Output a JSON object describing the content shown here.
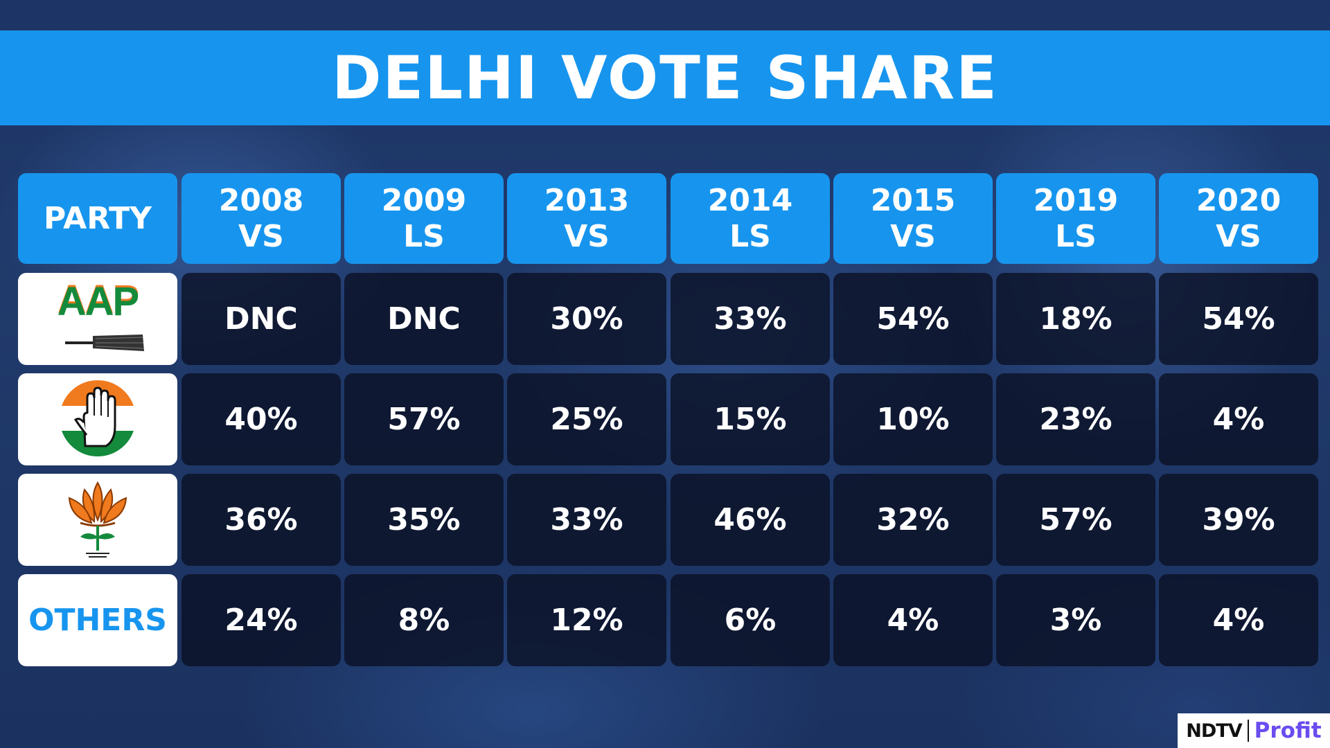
{
  "title": "DELHI VOTE SHARE",
  "chart_data": {
    "type": "table",
    "title": "DELHI VOTE SHARE",
    "header": {
      "party_label": "PARTY",
      "columns": [
        {
          "year": "2008",
          "type": "VS"
        },
        {
          "year": "2009",
          "type": "LS"
        },
        {
          "year": "2013",
          "type": "VS"
        },
        {
          "year": "2014",
          "type": "LS"
        },
        {
          "year": "2015",
          "type": "VS"
        },
        {
          "year": "2019",
          "type": "LS"
        },
        {
          "year": "2020",
          "type": "VS"
        }
      ]
    },
    "rows": [
      {
        "party_text": "AAP",
        "logo_icon": "aap-broom-logo-icon",
        "values": [
          "DNC",
          "DNC",
          "30%",
          "33%",
          "54%",
          "18%",
          "54%"
        ]
      },
      {
        "logo_icon": "congress-hand-logo-icon",
        "values": [
          "40%",
          "57%",
          "25%",
          "15%",
          "10%",
          "23%",
          "4%"
        ]
      },
      {
        "logo_icon": "bjp-lotus-logo-icon",
        "values": [
          "36%",
          "35%",
          "33%",
          "46%",
          "32%",
          "57%",
          "39%"
        ]
      },
      {
        "party_text": "OTHERS",
        "values": [
          "24%",
          "8%",
          "12%",
          "6%",
          "4%",
          "3%",
          "4%"
        ]
      }
    ]
  },
  "brand": {
    "left": "NDTV",
    "right": "Profit"
  },
  "colors": {
    "accent": "#1795ee",
    "cell": "#0a1022",
    "brand_purple": "#6a4cf0",
    "saffron": "#f07a1e",
    "green": "#138a3c"
  }
}
